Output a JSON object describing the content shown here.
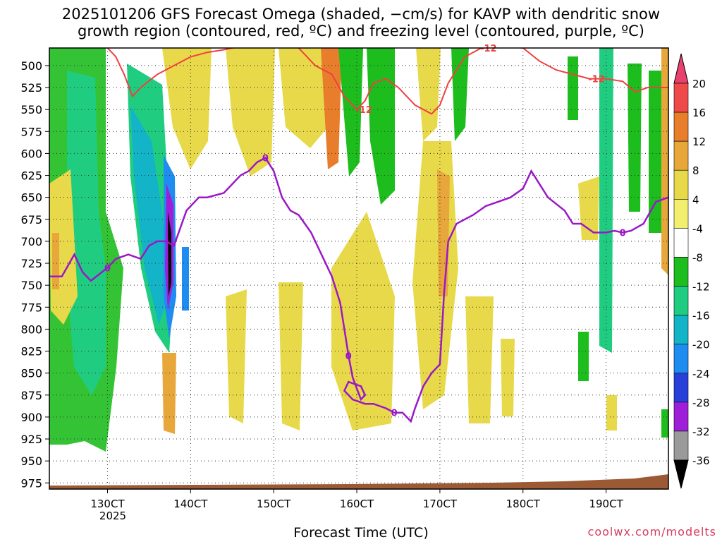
{
  "chart_data": {
    "type": "heatmap",
    "title_line1": "2025101206 GFS Forecast Omega (shaded, −cm/s) for KAVP with dendritic snow",
    "title_line2": "growth region (contoured, red, ºC) and freezing level (contoured, purple, ºC)",
    "xlabel": "Forecast Time (UTC)",
    "credit": "coolwx.com/modelts",
    "year_label": "2025",
    "x_ticks": [
      "130CT",
      "140CT",
      "150CT",
      "160CT",
      "170CT",
      "180CT",
      "190CT"
    ],
    "x_tick_days": [
      13,
      14,
      15,
      16,
      17,
      18,
      19
    ],
    "x_range_days": [
      12.3,
      19.75
    ],
    "y_ticks": [
      500,
      525,
      550,
      575,
      600,
      625,
      650,
      675,
      700,
      725,
      750,
      775,
      800,
      825,
      850,
      875,
      900,
      925,
      950,
      975
    ],
    "y_range_mb": [
      480,
      982
    ],
    "colorbar_levels": [
      20,
      16,
      12,
      8,
      4,
      -4,
      -8,
      -12,
      -16,
      -20,
      -24,
      -28,
      -32,
      -36
    ],
    "colorbar_colors": [
      "#e8416e",
      "#ee4a4a",
      "#e87e2c",
      "#e8a73a",
      "#e8d94a",
      "#f2ef6e",
      "#ffffff",
      "#1ebd1e",
      "#20cd80",
      "#14b4c8",
      "#1e8cf0",
      "#2840d8",
      "#9f1fd8",
      "#9a9a9a",
      "#000000"
    ],
    "freezing_level_label": "0",
    "dgz_label": "-12",
    "freezing_level_series": {
      "name": "freezing level 0C (purple)",
      "x": [
        12.3,
        12.45,
        12.6,
        12.7,
        12.8,
        13.0,
        13.1,
        13.25,
        13.4,
        13.5,
        13.6,
        13.7,
        13.8,
        13.95,
        14.1,
        14.2,
        14.4,
        14.6,
        14.7,
        14.8,
        14.9,
        15.0,
        15.1,
        15.2,
        15.3,
        15.45,
        15.55,
        15.7,
        15.8,
        15.9,
        15.95,
        16.05,
        16.1,
        16.05,
        15.9,
        15.85,
        15.95,
        16.1,
        16.2,
        16.35,
        16.45,
        16.55,
        16.6,
        16.65,
        16.7,
        16.8,
        16.9,
        17.0,
        17.05,
        17.1,
        17.2,
        17.4,
        17.55,
        17.7,
        17.85,
        18.0,
        18.1,
        18.3,
        18.5,
        18.6,
        18.7,
        18.85,
        19.0,
        19.1,
        19.2,
        19.3,
        19.45,
        19.6,
        19.75
      ],
      "y": [
        740,
        740,
        715,
        735,
        745,
        730,
        720,
        715,
        720,
        705,
        700,
        700,
        705,
        665,
        650,
        650,
        645,
        625,
        620,
        610,
        605,
        620,
        650,
        665,
        670,
        690,
        710,
        740,
        770,
        830,
        855,
        880,
        875,
        865,
        860,
        870,
        880,
        885,
        885,
        890,
        895,
        895,
        900,
        905,
        890,
        865,
        850,
        840,
        760,
        700,
        680,
        670,
        660,
        655,
        650,
        640,
        620,
        650,
        665,
        680,
        680,
        690,
        690,
        688,
        690,
        688,
        680,
        655,
        650
      ]
    },
    "dgz_minus12_series": {
      "name": "dendritic growth -12C (red)",
      "x": [
        12.3,
        12.6,
        12.8,
        13.0,
        13.1,
        13.2,
        13.3,
        13.4,
        13.6,
        13.8,
        14.0,
        14.2,
        14.4,
        14.6,
        14.8,
        14.95,
        15.1,
        15.3,
        15.5,
        15.7,
        15.85,
        16.0,
        16.1,
        16.2,
        16.35,
        16.5,
        16.7,
        16.9,
        17.0,
        17.1,
        17.3,
        17.5,
        17.8,
        18.0,
        18.2,
        18.4,
        18.6,
        18.8,
        19.0,
        19.2,
        19.35,
        19.5,
        19.75
      ],
      "y": [
        470,
        470,
        475,
        480,
        490,
        510,
        535,
        525,
        510,
        500,
        490,
        485,
        482,
        478,
        470,
        470,
        472,
        480,
        500,
        510,
        535,
        550,
        540,
        520,
        515,
        525,
        545,
        555,
        545,
        520,
        490,
        480,
        478,
        480,
        495,
        505,
        510,
        515,
        515,
        518,
        530,
        525,
        525
      ]
    }
  }
}
